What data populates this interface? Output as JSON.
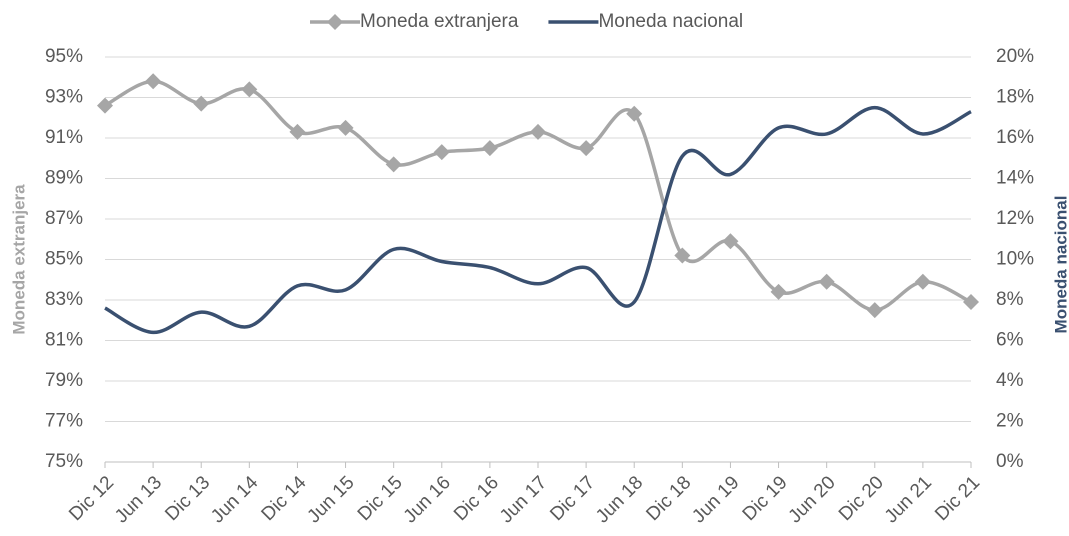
{
  "chart_data": {
    "type": "line",
    "categories": [
      "Dic 12",
      "Jun 13",
      "Dic 13",
      "Jun 14",
      "Dic 14",
      "Jun 15",
      "Dic 15",
      "Jun 16",
      "Dic 16",
      "Jun 17",
      "Dic 17",
      "Jun 18",
      "Dic 18",
      "Jun 19",
      "Dic 19",
      "Jun 20",
      "Dic 20",
      "Jun 21",
      "Dic 21"
    ],
    "series": [
      {
        "name": "Moneda extranjera",
        "color": "#a6a6a6",
        "marker": "diamond",
        "values": [
          92.6,
          93.8,
          92.7,
          93.4,
          91.3,
          91.5,
          89.7,
          90.3,
          90.5,
          91.3,
          90.5,
          92.2,
          85.2,
          85.9,
          83.4,
          83.9,
          82.5,
          83.9,
          82.9
        ]
      },
      {
        "name": "Moneda nacional",
        "color": "#3a5070",
        "axis": "y2",
        "values": [
          7.6,
          6.4,
          7.4,
          6.7,
          8.7,
          8.5,
          10.5,
          9.9,
          9.6,
          8.8,
          9.6,
          7.9,
          15.1,
          14.2,
          16.5,
          16.2,
          17.5,
          16.2,
          17.3
        ]
      }
    ],
    "ylabel": "Moneda extranjera",
    "y2label": "Moneda nacional",
    "ylim": [
      75,
      95
    ],
    "yticks": [
      {
        "value": 75,
        "label": "75%"
      },
      {
        "value": 77,
        "label": "77%"
      },
      {
        "value": 79,
        "label": "79%"
      },
      {
        "value": 81,
        "label": "81%"
      },
      {
        "value": 83,
        "label": "83%"
      },
      {
        "value": 85,
        "label": "85%"
      },
      {
        "value": 87,
        "label": "87%"
      },
      {
        "value": 89,
        "label": "89%"
      },
      {
        "value": 91,
        "label": "91%"
      },
      {
        "value": 93,
        "label": "93%"
      },
      {
        "value": 95,
        "label": "95%"
      }
    ],
    "y2lim": [
      0,
      20
    ],
    "y2ticks": [
      {
        "value": 0,
        "label": "0%"
      },
      {
        "value": 2,
        "label": "2%"
      },
      {
        "value": 4,
        "label": "4%"
      },
      {
        "value": 6,
        "label": "6%"
      },
      {
        "value": 8,
        "label": "8%"
      },
      {
        "value": 10,
        "label": "10%"
      },
      {
        "value": 12,
        "label": "12%"
      },
      {
        "value": 14,
        "label": "14%"
      },
      {
        "value": 16,
        "label": "16%"
      },
      {
        "value": 18,
        "label": "18%"
      },
      {
        "value": 20,
        "label": "20%"
      }
    ],
    "grid": true,
    "legend": "top"
  }
}
